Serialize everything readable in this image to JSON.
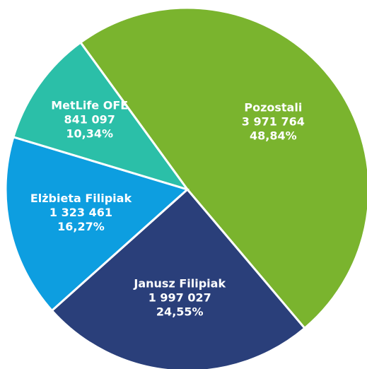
{
  "chart_data": {
    "type": "pie",
    "categories": [
      "Pozostali",
      "Janusz Filipiak",
      "Elżbieta Filipiak",
      "MetLife OFE"
    ],
    "values": [
      3971764,
      1997027,
      1323461,
      841097
    ],
    "value_labels": [
      "3 971 764",
      "1 997 027",
      "1 323 461",
      "841 097"
    ],
    "percentages": [
      48.84,
      24.55,
      16.27,
      10.34
    ],
    "percentage_labels": [
      "48,84%",
      "24,55%",
      "16,27%",
      "10,34%"
    ],
    "colors": [
      "#7ab42e",
      "#2a3f7a",
      "#0d9ee0",
      "#2bbfa8"
    ]
  }
}
